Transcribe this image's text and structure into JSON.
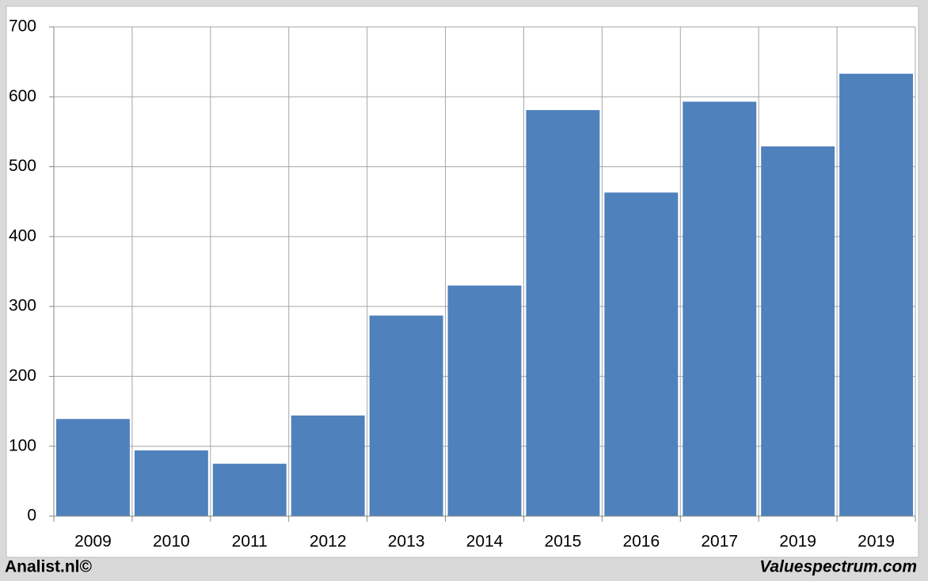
{
  "chart_data": {
    "type": "bar",
    "categories": [
      "2009",
      "2010",
      "2011",
      "2012",
      "2013",
      "2014",
      "2015",
      "2016",
      "2017",
      "2019",
      "2019"
    ],
    "values": [
      139,
      94,
      75,
      144,
      287,
      330,
      581,
      463,
      593,
      529,
      633
    ],
    "color": "#4f81bd",
    "ylim": [
      0,
      700
    ],
    "yticks": [
      0,
      100,
      200,
      300,
      400,
      500,
      600,
      700
    ],
    "grid": true
  },
  "footer": {
    "left": "Analist.nl©",
    "right": "Valuespectrum.com"
  }
}
